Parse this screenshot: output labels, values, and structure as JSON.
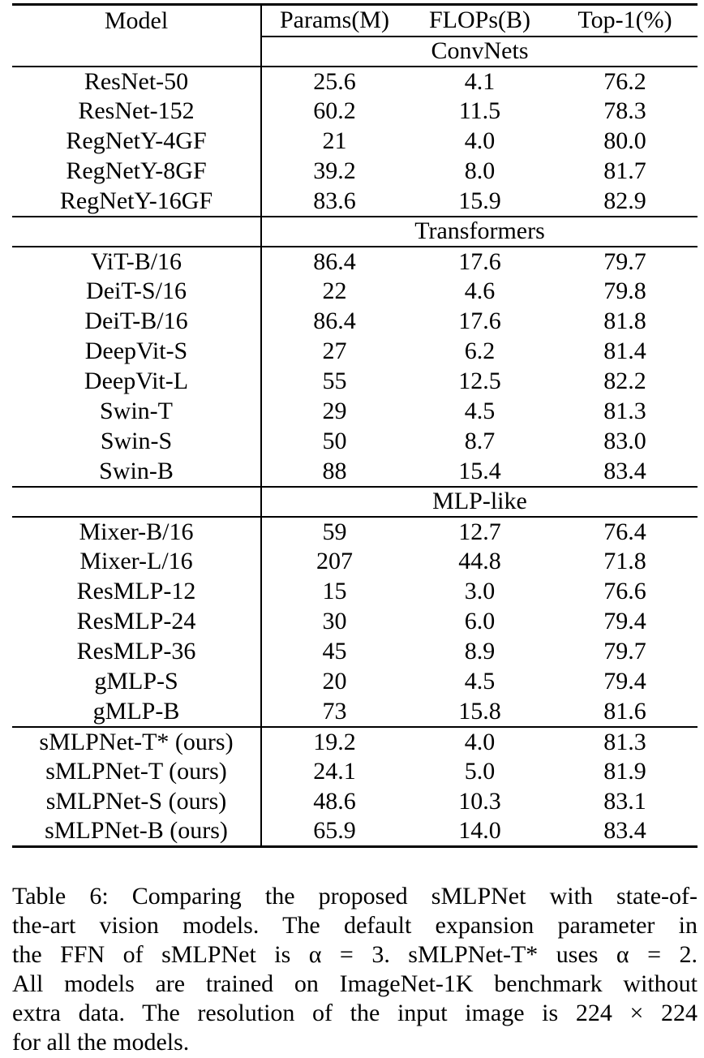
{
  "table": {
    "columns": [
      "Model",
      "Params(M)",
      "FLOPs(B)",
      "Top-1(%)"
    ],
    "sections": [
      {
        "name": "ConvNets",
        "rows": [
          [
            "ResNet-50",
            "25.6",
            "4.1",
            "76.2"
          ],
          [
            "ResNet-152",
            "60.2",
            "11.5",
            "78.3"
          ],
          [
            "RegNetY-4GF",
            "21",
            "4.0",
            "80.0"
          ],
          [
            "RegNetY-8GF",
            "39.2",
            "8.0",
            "81.7"
          ],
          [
            "RegNetY-16GF",
            "83.6",
            "15.9",
            "82.9"
          ]
        ]
      },
      {
        "name": "Transformers",
        "rows": [
          [
            "ViT-B/16",
            "86.4",
            "17.6",
            "79.7"
          ],
          [
            "DeiT-S/16",
            "22",
            "4.6",
            "79.8"
          ],
          [
            "DeiT-B/16",
            "86.4",
            "17.6",
            "81.8"
          ],
          [
            "DeepVit-S",
            "27",
            "6.2",
            "81.4"
          ],
          [
            "DeepVit-L",
            "55",
            "12.5",
            "82.2"
          ],
          [
            "Swin-T",
            "29",
            "4.5",
            "81.3"
          ],
          [
            "Swin-S",
            "50",
            "8.7",
            "83.0"
          ],
          [
            "Swin-B",
            "88",
            "15.4",
            "83.4"
          ]
        ]
      },
      {
        "name": "MLP-like",
        "rows": [
          [
            "Mixer-B/16",
            "59",
            "12.7",
            "76.4"
          ],
          [
            "Mixer-L/16",
            "207",
            "44.8",
            "71.8"
          ],
          [
            "ResMLP-12",
            "15",
            "3.0",
            "76.6"
          ],
          [
            "ResMLP-24",
            "30",
            "6.0",
            "79.4"
          ],
          [
            "ResMLP-36",
            "45",
            "8.9",
            "79.7"
          ],
          [
            "gMLP-S",
            "20",
            "4.5",
            "79.4"
          ],
          [
            "gMLP-B",
            "73",
            "15.8",
            "81.6"
          ]
        ]
      },
      {
        "name": "",
        "rows": [
          [
            "sMLPNet-T* (ours)",
            "19.2",
            "4.0",
            "81.3"
          ],
          [
            "sMLPNet-T (ours)",
            "24.1",
            "5.0",
            "81.9"
          ],
          [
            "sMLPNet-S (ours)",
            "48.6",
            "10.3",
            "83.1"
          ],
          [
            "sMLPNet-B (ours)",
            "65.9",
            "14.0",
            "83.4"
          ]
        ]
      }
    ]
  },
  "caption": {
    "lines": [
      "Table 6: Comparing the proposed sMLPNet with state-of-",
      "the-art vision models. The default expansion parameter in",
      "the FFN of sMLPNet is α = 3. sMLPNet-T* uses α = 2.",
      "All models are trained on ImageNet-1K benchmark without",
      "extra data. The resolution of the input image is 224 × 224",
      "for all the models."
    ]
  }
}
